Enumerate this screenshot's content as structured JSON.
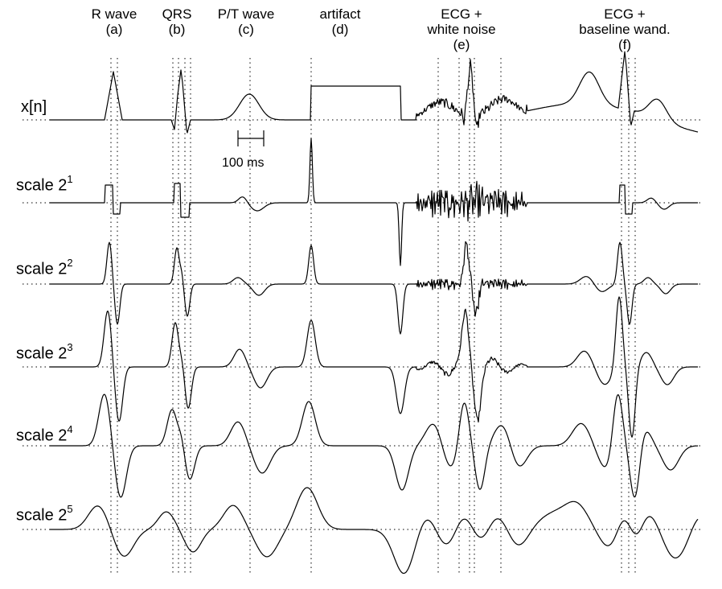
{
  "columns": [
    {
      "id": "a",
      "title": "R wave",
      "tag": "(a)"
    },
    {
      "id": "b",
      "title": "QRS",
      "tag": "(b)"
    },
    {
      "id": "c",
      "title": "P/T wave",
      "tag": "(c)"
    },
    {
      "id": "d",
      "title": "artifact",
      "tag": "(d)"
    },
    {
      "id": "e",
      "title_line1": "ECG +",
      "title_line2": "white noise",
      "tag": "(e)"
    },
    {
      "id": "f",
      "title_line1": "ECG +",
      "title_line2": "baseline wand.",
      "tag": "(f)"
    }
  ],
  "rows": [
    {
      "label": "x[n]",
      "exponent": ""
    },
    {
      "label": "scale 2",
      "exponent": "1"
    },
    {
      "label": "scale 2",
      "exponent": "2"
    },
    {
      "label": "scale 2",
      "exponent": "3"
    },
    {
      "label": "scale 2",
      "exponent": "4"
    },
    {
      "label": "scale 2",
      "exponent": "5"
    }
  ],
  "scale_bar": {
    "label": "100 ms"
  },
  "colors": {
    "trace": "#000000",
    "guides": "#000000"
  }
}
